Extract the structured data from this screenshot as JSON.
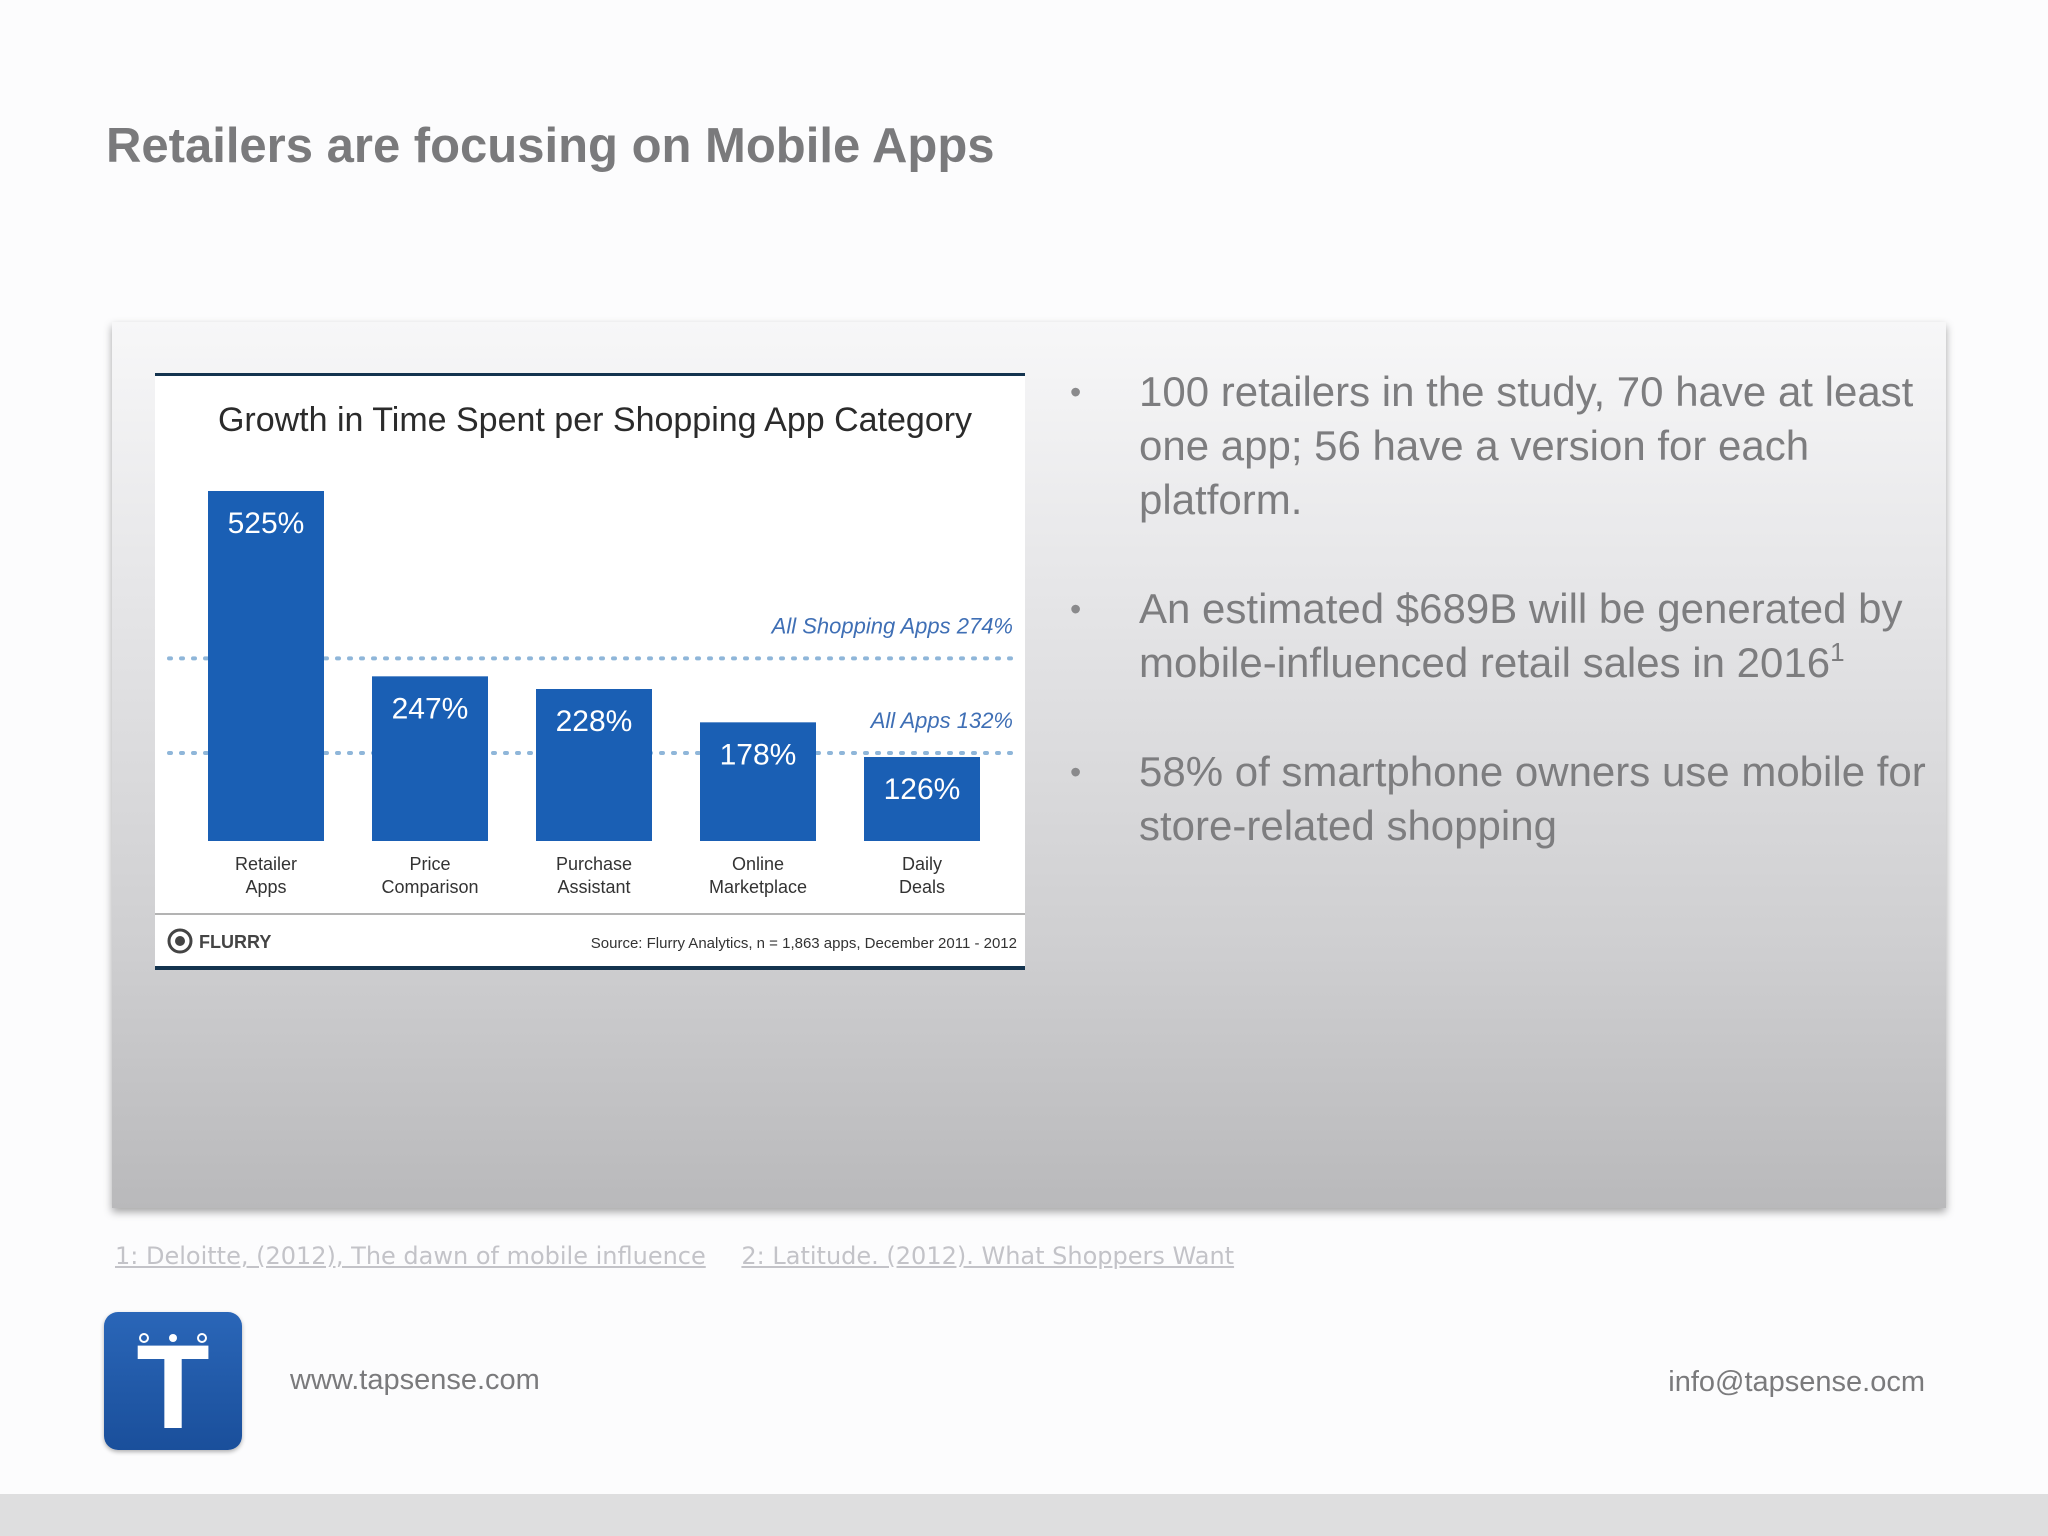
{
  "slide": {
    "title": "Retailers are focusing on Mobile Apps"
  },
  "bullets": [
    {
      "text": "100 retailers in the study, 70 have at least one app; 56 have a version for each platform.",
      "sup": ""
    },
    {
      "text": "An estimated $689B will be generated by mobile-influenced retail sales in 2016",
      "sup": "1"
    },
    {
      "text": "58% of smartphone owners use mobile for store-related shopping",
      "sup": ""
    }
  ],
  "references": {
    "ref1": "1: Deloitte, (2012), The dawn of mobile influence",
    "ref2": "2: Latitude. (2012). What Shoppers Want"
  },
  "footer": {
    "website": "www.tapsense.com",
    "email": "info@tapsense.ocm",
    "logo_letter": "T"
  },
  "colors": {
    "bar": "#1a5fb4",
    "reference_line": "#8fb6d9",
    "annotation": "#3f6fb5",
    "chart_border": "#14344f"
  },
  "chart_data": {
    "type": "bar",
    "title": "Growth in Time Spent per Shopping App Category",
    "categories": [
      [
        "Retailer",
        "Apps"
      ],
      [
        "Price",
        "Comparison"
      ],
      [
        "Purchase",
        "Assistant"
      ],
      [
        "Online",
        "Marketplace"
      ],
      [
        "Daily",
        "Deals"
      ]
    ],
    "values": [
      525,
      247,
      228,
      178,
      126
    ],
    "data_labels": [
      "525%",
      "247%",
      "228%",
      "178%",
      "126%"
    ],
    "reference_lines": [
      {
        "label": "All Shopping Apps 274%",
        "value": 274
      },
      {
        "label": "All Apps 132%",
        "value": 132
      }
    ],
    "ylim": [
      0,
      525
    ],
    "xlabel": "",
    "ylabel": "",
    "brand": "FLURRY",
    "source": "Source: Flurry Analytics, n = 1,863 apps, December 2011 - 2012"
  }
}
